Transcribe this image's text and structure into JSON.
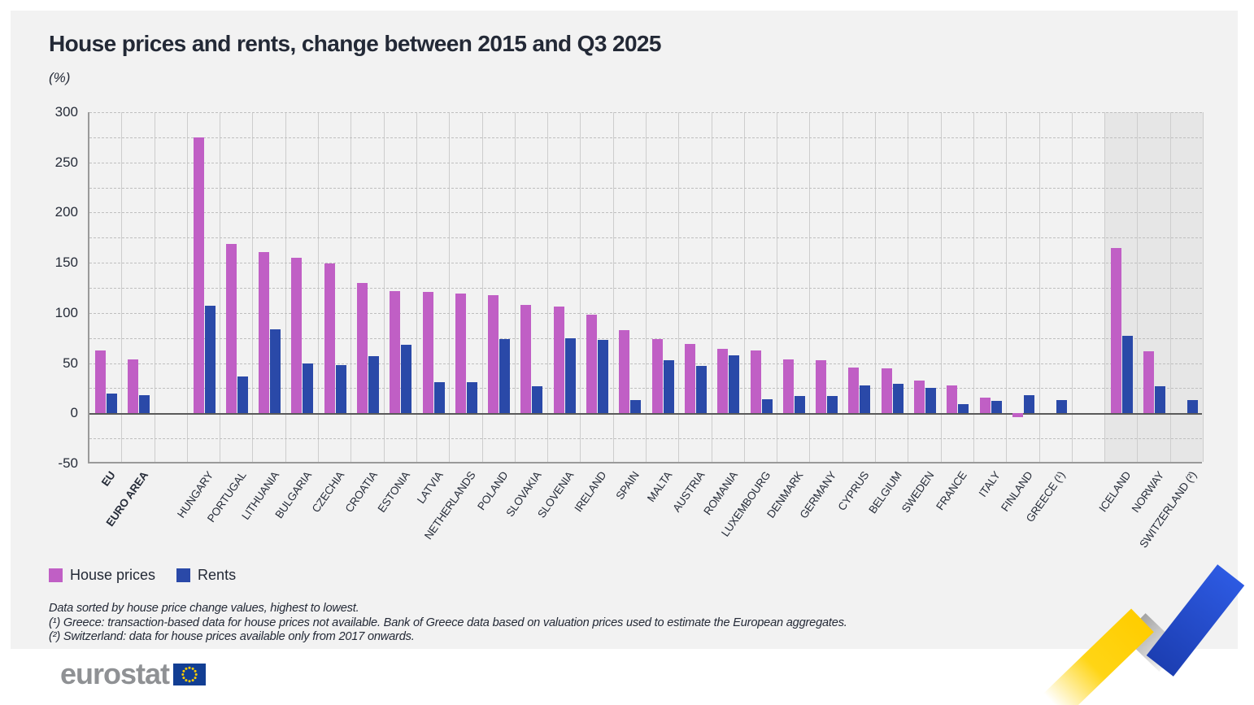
{
  "title": "House prices and rents, change between 2015 and Q3 2025",
  "unit_label": "(%)",
  "legend": {
    "house_prices_label": "House prices",
    "rents_label": "Rents",
    "house_prices_color": "#c05fc5",
    "rents_color": "#2a49a8"
  },
  "footnotes": {
    "line1": "Data sorted by house price change values, highest to lowest.",
    "line2": "(¹) Greece: transaction-based data for house prices not available. Bank of Greece data based on valuation prices used to estimate the European aggregates.",
    "line3": "(²) Switzerland: data for house prices available only from 2017 onwards."
  },
  "logo": {
    "text": "eurostat"
  },
  "chart_data": {
    "type": "bar",
    "title": "House prices and rents, change between 2015 and Q3 2025",
    "ylabel": "(%)",
    "ylim": [
      -50,
      300
    ],
    "ytick_step": 50,
    "grid_minor_step": 25,
    "grid": true,
    "legend_position": "bottom-left",
    "categories": [
      "EU",
      "EURO AREA",
      "HUNGARY",
      "PORTUGAL",
      "LITHUANIA",
      "BULGARIA",
      "CZECHIA",
      "CROATIA",
      "ESTONIA",
      "LATVIA",
      "NETHERLANDS",
      "POLAND",
      "SLOVAKIA",
      "SLOVENIA",
      "IRELAND",
      "SPAIN",
      "MALTA",
      "AUSTRIA",
      "ROMANIA",
      "LUXEMBOURG",
      "DENMARK",
      "GERMANY",
      "CYPRUS",
      "BELGIUM",
      "SWEDEN",
      "FRANCE",
      "ITALY",
      "FINLAND",
      "GREECE (¹)",
      "ICELAND",
      "NORWAY",
      "SWITZERLAND (²)"
    ],
    "series": [
      {
        "name": "House prices",
        "color": "#c05fc5",
        "values": [
          63,
          54,
          275,
          169,
          161,
          155,
          149,
          130,
          122,
          121,
          119,
          118,
          108,
          106,
          98,
          83,
          74,
          69,
          64,
          63,
          54,
          53,
          46,
          45,
          33,
          28,
          16,
          -4,
          null,
          165,
          62,
          null
        ]
      },
      {
        "name": "Rents",
        "color": "#2a49a8",
        "values": [
          20,
          18,
          107,
          37,
          84,
          50,
          48,
          57,
          68,
          31,
          31,
          74,
          27,
          75,
          73,
          13,
          53,
          47,
          58,
          14,
          17,
          17,
          28,
          29,
          25,
          9,
          12,
          18,
          13,
          77,
          27,
          13
        ]
      }
    ],
    "bold_categories": [
      "EU",
      "EURO AREA"
    ],
    "shaded_categories": [
      "ICELAND",
      "NORWAY",
      "SWITZERLAND (²)"
    ],
    "gaps_before": [
      "HUNGARY",
      "ICELAND"
    ]
  }
}
